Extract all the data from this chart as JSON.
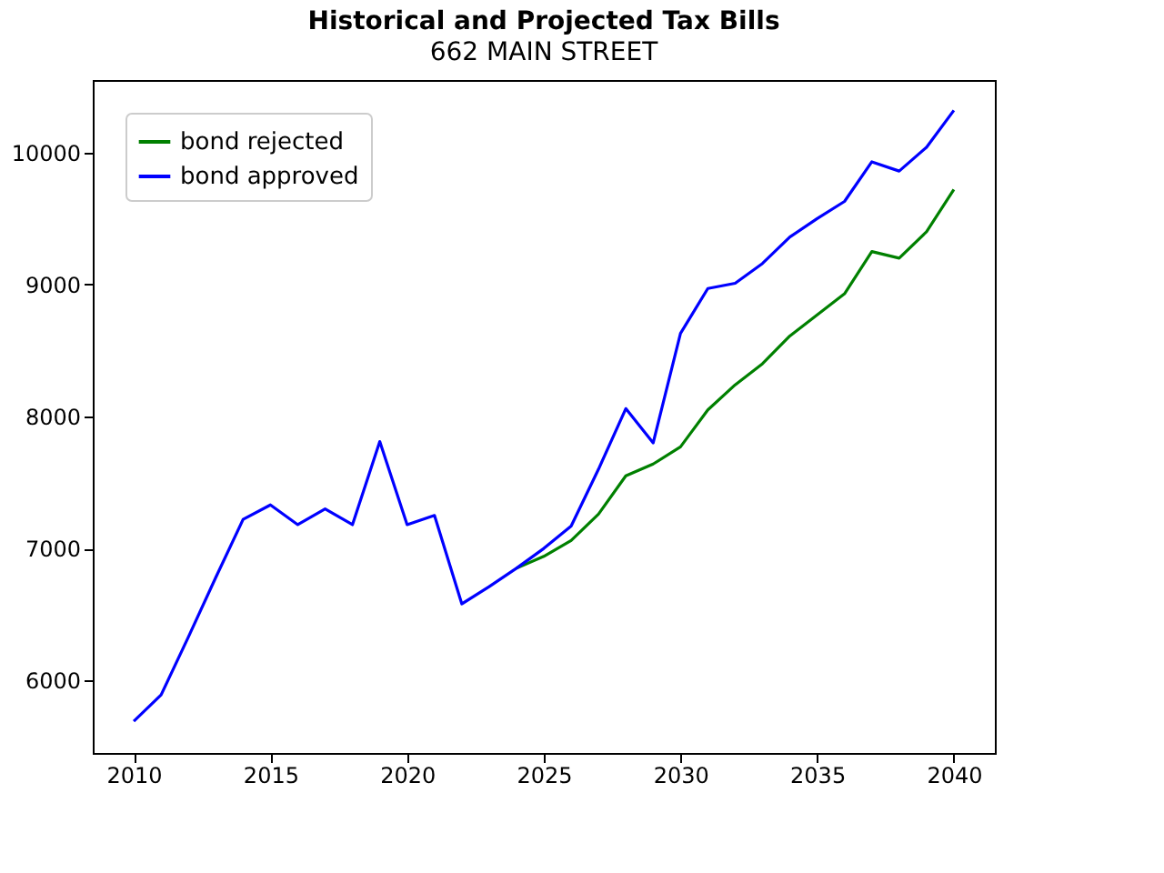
{
  "chart_data": {
    "type": "line",
    "title": "Historical and Projected Tax Bills",
    "subtitle": "662 MAIN STREET",
    "x": [
      2010,
      2011,
      2012,
      2013,
      2014,
      2015,
      2016,
      2017,
      2018,
      2019,
      2020,
      2021,
      2022,
      2023,
      2024,
      2025,
      2026,
      2027,
      2028,
      2029,
      2030,
      2031,
      2032,
      2033,
      2034,
      2035,
      2036,
      2037,
      2038,
      2039,
      2040
    ],
    "series": [
      {
        "name": "bond rejected",
        "color": "#008000",
        "values": [
          null,
          null,
          null,
          null,
          null,
          null,
          null,
          null,
          null,
          null,
          null,
          null,
          null,
          null,
          6850,
          6940,
          7060,
          7260,
          7550,
          7640,
          7770,
          8050,
          8240,
          8400,
          8610,
          8770,
          8930,
          9250,
          9200,
          9400,
          9720
        ]
      },
      {
        "name": "bond approved",
        "color": "#0000ff",
        "values": [
          5690,
          5890,
          6330,
          6780,
          7220,
          7330,
          7180,
          7300,
          7180,
          7810,
          7180,
          7250,
          6580,
          6710,
          6850,
          7000,
          7170,
          7600,
          8060,
          7800,
          8630,
          8970,
          9010,
          9160,
          9360,
          9500,
          9630,
          9930,
          9860,
          10040,
          10320
        ]
      }
    ],
    "xlim": [
      2008.5,
      2041.5
    ],
    "xticks": [
      2010,
      2015,
      2020,
      2025,
      2030,
      2035,
      2040
    ],
    "ylim": [
      5450,
      10550
    ],
    "yticks": [
      6000,
      7000,
      8000,
      9000,
      10000
    ],
    "grid": false,
    "legend": "top left"
  }
}
